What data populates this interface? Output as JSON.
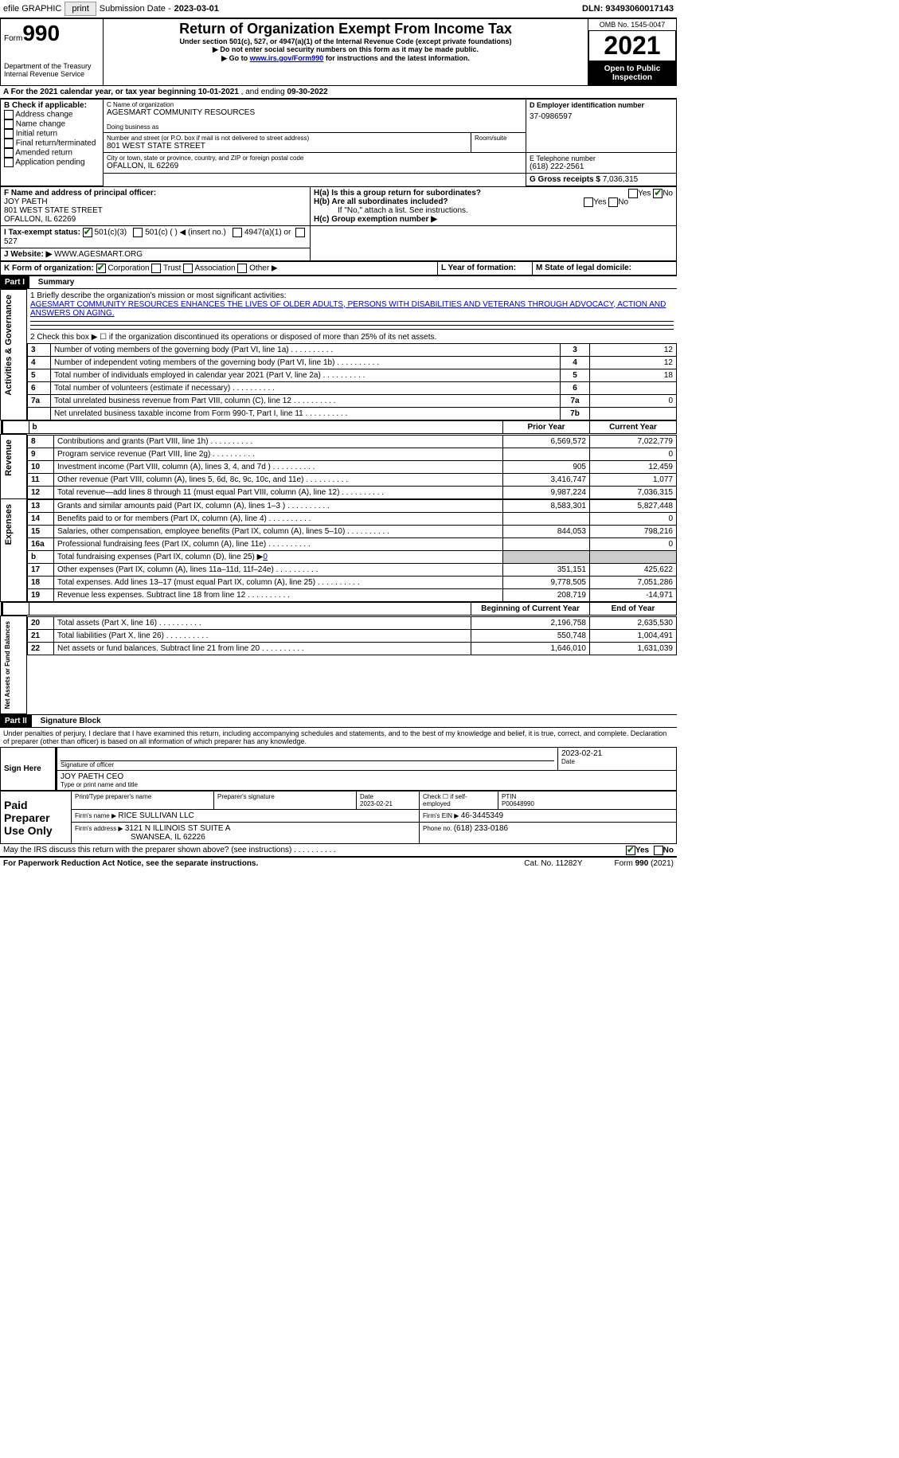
{
  "topbar": {
    "efile": "efile GRAPHIC",
    "print": "print",
    "sub_label": "Submission Date - ",
    "sub_date": "2023-03-01",
    "dln_label": "DLN: ",
    "dln": "93493060017143"
  },
  "header": {
    "form_word": "Form",
    "form_no": "990",
    "dept1": "Department of the Treasury",
    "dept2": "Internal Revenue Service",
    "title": "Return of Organization Exempt From Income Tax",
    "sub1": "Under section 501(c), 527, or 4947(a)(1) of the Internal Revenue Code (except private foundations)",
    "sub2": "▶ Do not enter social security numbers on this form as it may be made public.",
    "sub3_pre": "▶ Go to ",
    "sub3_link": "www.irs.gov/Form990",
    "sub3_post": " for instructions and the latest information.",
    "omb_label": "OMB No. ",
    "omb": "1545-0047",
    "year": "2021",
    "open": "Open to Public Inspection"
  },
  "A": {
    "label_pre": "A For the 2021 calendar year, or tax year beginning ",
    "begin": "10-01-2021",
    "mid": " , and ending ",
    "end": "09-30-2022"
  },
  "B": {
    "label": "B Check if applicable:",
    "items": [
      "Address change",
      "Name change",
      "Initial return",
      "Final return/terminated",
      "Amended return",
      "Application pending"
    ]
  },
  "C": {
    "name_label": "C Name of organization",
    "name": "AGESMART COMMUNITY RESOURCES",
    "dba_label": "Doing business as",
    "street_label": "Number and street (or P.O. box if mail is not delivered to street address)",
    "room_label": "Room/suite",
    "street": "801 WEST STATE STREET",
    "city_label": "City or town, state or province, country, and ZIP or foreign postal code",
    "city": "OFALLON, IL  62269"
  },
  "D": {
    "label": "D Employer identification number",
    "value": "37-0986597"
  },
  "E": {
    "label": "E Telephone number",
    "value": "(618) 222-2561"
  },
  "G": {
    "label": "G Gross receipts $ ",
    "value": "7,036,315"
  },
  "F": {
    "label": "F Name and address of principal officer:",
    "name": "JOY PAETH",
    "street": "801 WEST STATE STREET",
    "city": "OFALLON, IL  62269"
  },
  "H": {
    "a_label": "H(a)  Is this a group return for subordinates?",
    "b_label": "H(b)  Are all subordinates included?",
    "b_note": "If \"No,\" attach a list. See instructions.",
    "c_label": "H(c)  Group exemption number ▶",
    "yes": "Yes",
    "no": "No"
  },
  "I": {
    "label": "I   Tax-exempt status:",
    "opt1": "501(c)(3)",
    "opt2": "501(c) (  ) ◀ (insert no.)",
    "opt3": "4947(a)(1) or",
    "opt4": "527"
  },
  "J": {
    "label": "J   Website: ▶  ",
    "value": "WWW.AGESMART.ORG"
  },
  "K": {
    "label": "K Form of organization:",
    "opts": [
      "Corporation",
      "Trust",
      "Association",
      "Other ▶"
    ]
  },
  "L": {
    "label": "L Year of formation:"
  },
  "M": {
    "label": "M State of legal domicile:"
  },
  "part1": {
    "label": "Part I",
    "title": "Summary"
  },
  "summary": {
    "q1_label": "1   Briefly describe the organization's mission or most significant activities:",
    "q1_text": "AGESMART COMMUNITY RESOURCES ENHANCES THE LIVES OF OLDER ADULTS, PERSONS WITH DISABILITIES AND VETERANS THROUGH ADVOCACY, ACTION AND ANSWERS ON AGING.",
    "q2": "2   Check this box ▶ ☐  if the organization discontinued its operations or disposed of more than 25% of its net assets.",
    "rows_gov": [
      {
        "n": "3",
        "t": "Number of voting members of the governing body (Part VI, line 1a)",
        "ln": "3",
        "v": "12"
      },
      {
        "n": "4",
        "t": "Number of independent voting members of the governing body (Part VI, line 1b)",
        "ln": "4",
        "v": "12"
      },
      {
        "n": "5",
        "t": "Total number of individuals employed in calendar year 2021 (Part V, line 2a)",
        "ln": "5",
        "v": "18"
      },
      {
        "n": "6",
        "t": "Total number of volunteers (estimate if necessary)",
        "ln": "6",
        "v": ""
      },
      {
        "n": "7a",
        "t": "Total unrelated business revenue from Part VIII, column (C), line 12",
        "ln": "7a",
        "v": "0"
      },
      {
        "n": "",
        "t": "Net unrelated business taxable income from Form 990-T, Part I, line 11",
        "ln": "7b",
        "v": ""
      }
    ],
    "col_prior": "Prior Year",
    "col_current": "Current Year",
    "rows_rev": [
      {
        "n": "8",
        "t": "Contributions and grants (Part VIII, line 1h)",
        "p": "6,569,572",
        "c": "7,022,779"
      },
      {
        "n": "9",
        "t": "Program service revenue (Part VIII, line 2g)",
        "p": "",
        "c": "0"
      },
      {
        "n": "10",
        "t": "Investment income (Part VIII, column (A), lines 3, 4, and 7d )",
        "p": "905",
        "c": "12,459"
      },
      {
        "n": "11",
        "t": "Other revenue (Part VIII, column (A), lines 5, 6d, 8c, 9c, 10c, and 11e)",
        "p": "3,416,747",
        "c": "1,077"
      },
      {
        "n": "12",
        "t": "Total revenue—add lines 8 through 11 (must equal Part VIII, column (A), line 12)",
        "p": "9,987,224",
        "c": "7,036,315"
      }
    ],
    "rows_exp": [
      {
        "n": "13",
        "t": "Grants and similar amounts paid (Part IX, column (A), lines 1–3 )",
        "p": "8,583,301",
        "c": "5,827,448"
      },
      {
        "n": "14",
        "t": "Benefits paid to or for members (Part IX, column (A), line 4)",
        "p": "",
        "c": "0"
      },
      {
        "n": "15",
        "t": "Salaries, other compensation, employee benefits (Part IX, column (A), lines 5–10)",
        "p": "844,053",
        "c": "798,216"
      },
      {
        "n": "16a",
        "t": "Professional fundraising fees (Part IX, column (A), line 11e)",
        "p": "",
        "c": "0"
      },
      {
        "n": "b",
        "t": "Total fundraising expenses (Part IX, column (D), line 25) ▶",
        "p": "—shade—",
        "c": "—shade—",
        "shade": true,
        "inline": "0"
      },
      {
        "n": "17",
        "t": "Other expenses (Part IX, column (A), lines 11a–11d, 11f–24e)",
        "p": "351,151",
        "c": "425,622"
      },
      {
        "n": "18",
        "t": "Total expenses. Add lines 13–17 (must equal Part IX, column (A), line 25)",
        "p": "9,778,505",
        "c": "7,051,286"
      },
      {
        "n": "19",
        "t": "Revenue less expenses. Subtract line 18 from line 12",
        "p": "208,719",
        "c": "-14,971"
      }
    ],
    "col_begin": "Beginning of Current Year",
    "col_end": "End of Year",
    "rows_net": [
      {
        "n": "20",
        "t": "Total assets (Part X, line 16)",
        "p": "2,196,758",
        "c": "2,635,530"
      },
      {
        "n": "21",
        "t": "Total liabilities (Part X, line 26)",
        "p": "550,748",
        "c": "1,004,491"
      },
      {
        "n": "22",
        "t": "Net assets or fund balances. Subtract line 21 from line 20",
        "p": "1,646,010",
        "c": "1,631,039"
      }
    ],
    "side_gov": "Activities & Governance",
    "side_rev": "Revenue",
    "side_exp": "Expenses",
    "side_net": "Net Assets or Fund Balances"
  },
  "part2": {
    "label": "Part II",
    "title": "Signature Block"
  },
  "sig": {
    "declaration": "Under penalties of perjury, I declare that I have examined this return, including accompanying schedules and statements, and to the best of my knowledge and belief, it is true, correct, and complete. Declaration of preparer (other than officer) is based on all information of which preparer has any knowledge.",
    "sign_here": "Sign Here",
    "sig_officer": "Signature of officer",
    "date": "Date",
    "officer_date": "2023-02-21",
    "officer_name": "JOY PAETH  CEO",
    "type_name": "Type or print name and title",
    "paid_label": "Paid Preparer Use Only",
    "prep_name": "Print/Type preparer's name",
    "prep_sig": "Preparer's signature",
    "prep_date_label": "Date",
    "prep_date": "2023-02-21",
    "check_self": "Check ☐ if self-employed",
    "ptin_label": "PTIN",
    "ptin": "P00648990",
    "firm_name_label": "Firm's name    ▶ ",
    "firm_name": "RICE SULLIVAN LLC",
    "firm_ein_label": "Firm's EIN ▶ ",
    "firm_ein": "46-3445349",
    "firm_addr_label": "Firm's address ▶ ",
    "firm_addr1": "3121 N ILLINOIS ST SUITE A",
    "firm_addr2": "SWANSEA, IL  62226",
    "phone_label": "Phone no. ",
    "phone": "(618) 233-0186",
    "may_irs": "May the IRS discuss this return with the preparer shown above? (see instructions)",
    "paperwork": "For Paperwork Reduction Act Notice, see the separate instructions.",
    "cat": "Cat. No. 11282Y",
    "form_foot": "Form 990 (2021)"
  }
}
